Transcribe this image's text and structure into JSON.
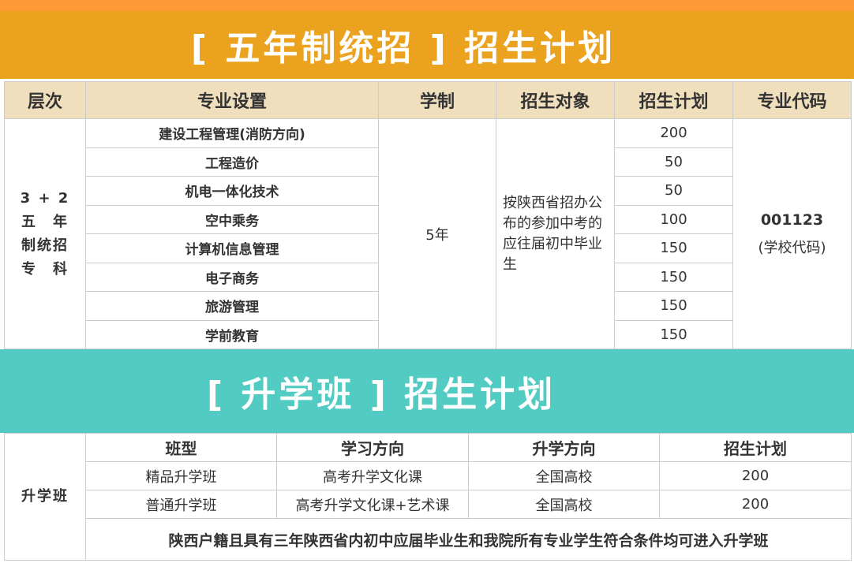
{
  "five_year": {
    "title": "[ 五年制统招 ]   招生计划",
    "headers": [
      "层次",
      "专业设置",
      "学制",
      "招生对象",
      "招生计划",
      "专业代码"
    ],
    "level": "3 + 2\n五　年\n制统招\n专　科",
    "duration": "5年",
    "target": "按陕西省招办公布的参加中考的应往届初中毕业生",
    "code": "001123",
    "code_note": "(学校代码)",
    "rows": [
      {
        "major": "建设工程管理(消防方向)",
        "plan": "200"
      },
      {
        "major": "工程造价",
        "plan": "50"
      },
      {
        "major": "机电一体化技术",
        "plan": "50"
      },
      {
        "major": "空中乘务",
        "plan": "100"
      },
      {
        "major": "计算机信息管理",
        "plan": "150"
      },
      {
        "major": "电子商务",
        "plan": "150"
      },
      {
        "major": "旅游管理",
        "plan": "150"
      },
      {
        "major": "学前教育",
        "plan": "150"
      }
    ]
  },
  "upgrade": {
    "title": "[ 升学班 ] 招生计划",
    "level": "升学班",
    "headers": [
      "班型",
      "学习方向",
      "升学方向",
      "招生计划"
    ],
    "rows": [
      [
        "精品升学班",
        "高考升学文化课",
        "全国高校",
        "200"
      ],
      [
        "普通升学班",
        "高考升学文化课+艺术课",
        "全国高校",
        "200"
      ]
    ],
    "note": "陕西户籍且具有三年陕西省内初中应届毕业生和我院所有专业学生符合条件均可进入升学班"
  },
  "colors": {
    "orange": "#eba21e",
    "teal": "#52ccc2",
    "header_bg": "#f0dfbd"
  }
}
